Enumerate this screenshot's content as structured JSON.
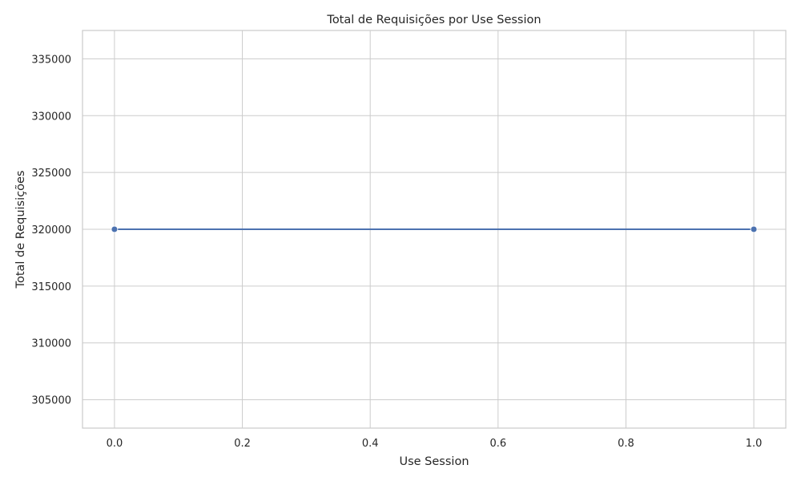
{
  "chart_data": {
    "type": "line",
    "title": "Total de Requisições por Use Session",
    "xlabel": "Use Session",
    "ylabel": "Total de Requisições",
    "xlim": [
      -0.05,
      1.05
    ],
    "ylim": [
      302500,
      337500
    ],
    "xticks": [
      0.0,
      0.2,
      0.4,
      0.6,
      0.8,
      1.0
    ],
    "xtick_labels": [
      "0.0",
      "0.2",
      "0.4",
      "0.6",
      "0.8",
      "1.0"
    ],
    "yticks": [
      305000,
      310000,
      315000,
      320000,
      325000,
      330000,
      335000
    ],
    "ytick_labels": [
      "305000",
      "310000",
      "315000",
      "320000",
      "325000",
      "330000",
      "335000"
    ],
    "grid": true,
    "series": [
      {
        "name": "Total de Requisições",
        "x": [
          0,
          1
        ],
        "y": [
          320000,
          320000
        ],
        "color": "#4c72b0",
        "marker": "circle"
      }
    ]
  }
}
